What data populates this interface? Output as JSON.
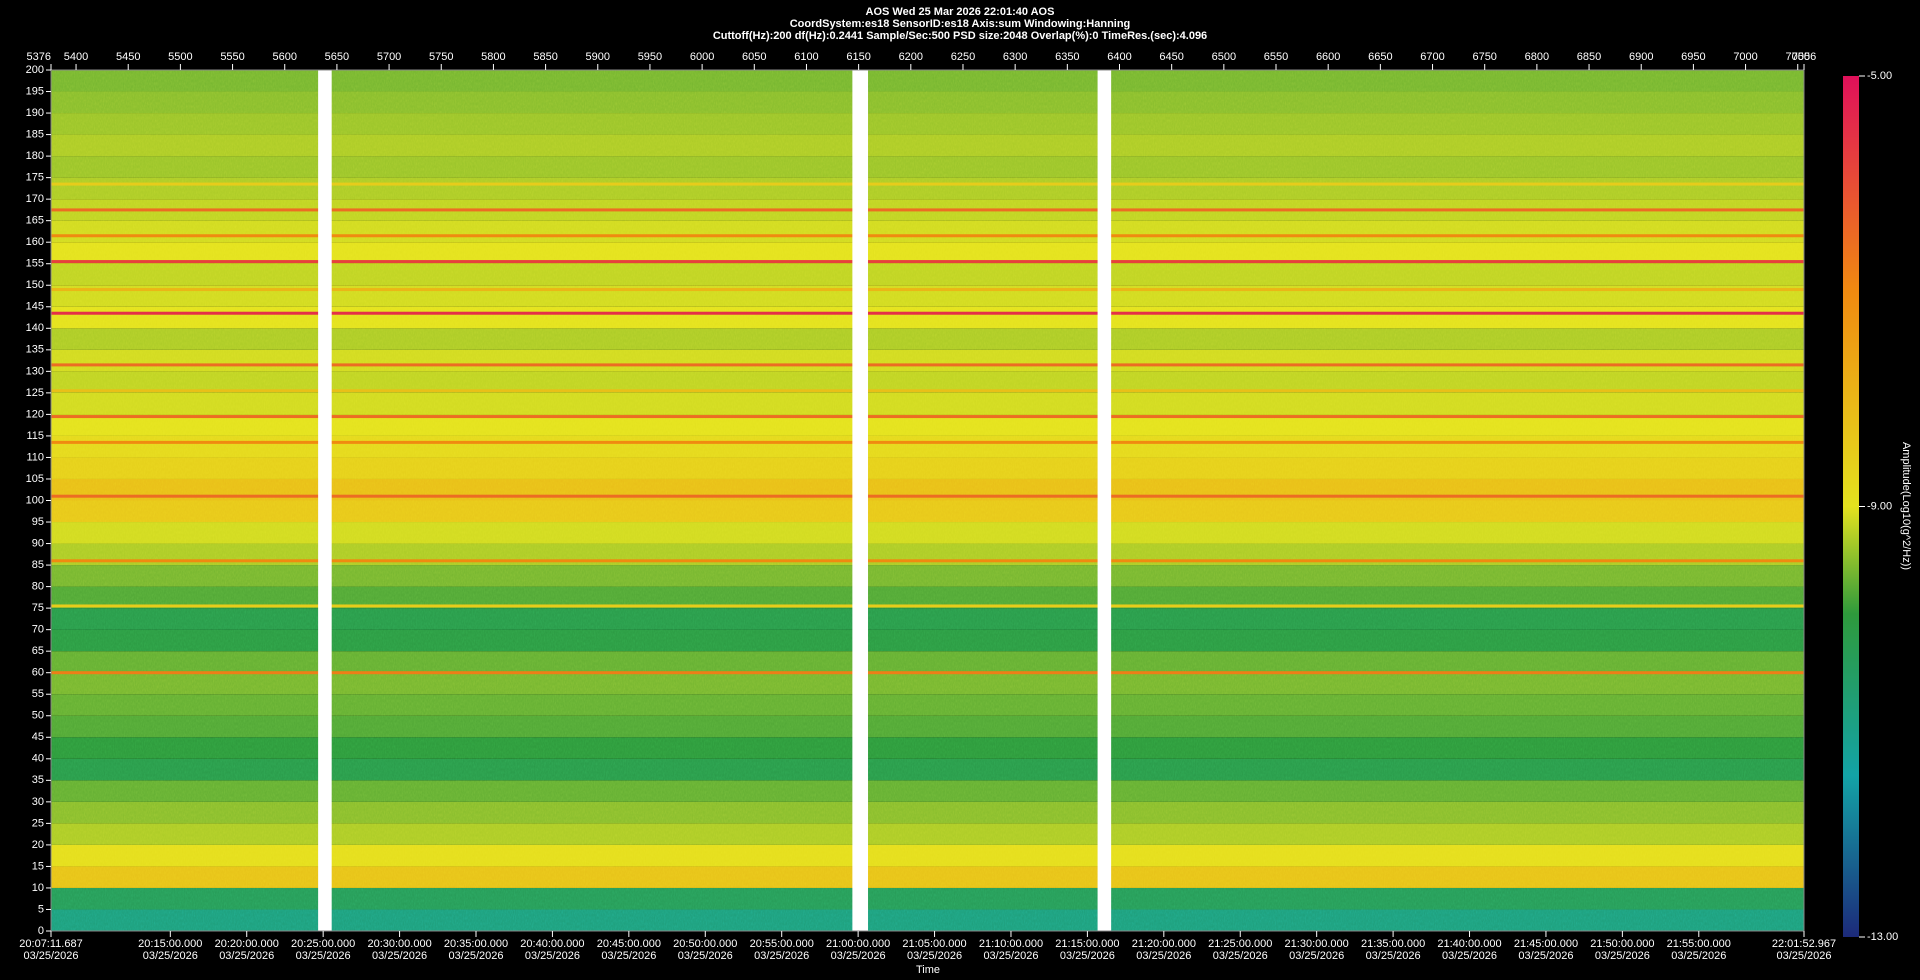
{
  "chart_data": {
    "type": "heatmap",
    "title": "AOS  Wed 25 Mar 2026 22:01:40  AOS",
    "subtitle": "CoordSystem:es18   SensorID:es18   Axis:sum   Windowing:Hanning",
    "info": "Cuttoff(Hz):200     df(Hz):0.2441     Sample/Sec:500     PSD size:2048     Overlap(%):0     TimeRes.(sec):4.096",
    "xlabel": "Time",
    "colorbar_label": "Amplitude(Log10(g^2/Hz))",
    "frame_lim": [
      5376,
      7056
    ],
    "frame_ticks": [
      5376,
      5400,
      5450,
      5500,
      5550,
      5600,
      5650,
      5700,
      5750,
      5800,
      5850,
      5900,
      5950,
      6000,
      6050,
      6100,
      6150,
      6200,
      6250,
      6300,
      6350,
      6400,
      6450,
      6500,
      6550,
      6600,
      6650,
      6700,
      6750,
      6800,
      6850,
      6900,
      6950,
      7000,
      7050,
      7056
    ],
    "xlim": [
      72431.687,
      79312.967
    ],
    "xticks": [
      {
        "value": 72431.687,
        "label": "20:07:11.687",
        "date": "03/25/2026"
      },
      {
        "value": 72900,
        "label": "20:15:00.000",
        "date": "03/25/2026"
      },
      {
        "value": 73200,
        "label": "20:20:00.000",
        "date": "03/25/2026"
      },
      {
        "value": 73500,
        "label": "20:25:00.000",
        "date": "03/25/2026"
      },
      {
        "value": 73800,
        "label": "20:30:00.000",
        "date": "03/25/2026"
      },
      {
        "value": 74100,
        "label": "20:35:00.000",
        "date": "03/25/2026"
      },
      {
        "value": 74400,
        "label": "20:40:00.000",
        "date": "03/25/2026"
      },
      {
        "value": 74700,
        "label": "20:45:00.000",
        "date": "03/25/2026"
      },
      {
        "value": 75000,
        "label": "20:50:00.000",
        "date": "03/25/2026"
      },
      {
        "value": 75300,
        "label": "20:55:00.000",
        "date": "03/25/2026"
      },
      {
        "value": 75600,
        "label": "21:00:00.000",
        "date": "03/25/2026"
      },
      {
        "value": 75900,
        "label": "21:05:00.000",
        "date": "03/25/2026"
      },
      {
        "value": 76200,
        "label": "21:10:00.000",
        "date": "03/25/2026"
      },
      {
        "value": 76500,
        "label": "21:15:00.000",
        "date": "03/25/2026"
      },
      {
        "value": 76800,
        "label": "21:20:00.000",
        "date": "03/25/2026"
      },
      {
        "value": 77100,
        "label": "21:25:00.000",
        "date": "03/25/2026"
      },
      {
        "value": 77400,
        "label": "21:30:00.000",
        "date": "03/25/2026"
      },
      {
        "value": 77700,
        "label": "21:35:00.000",
        "date": "03/25/2026"
      },
      {
        "value": 78000,
        "label": "21:40:00.000",
        "date": "03/25/2026"
      },
      {
        "value": 78300,
        "label": "21:45:00.000",
        "date": "03/25/2026"
      },
      {
        "value": 78600,
        "label": "21:50:00.000",
        "date": "03/25/2026"
      },
      {
        "value": 78900,
        "label": "21:55:00.000",
        "date": "03/25/2026"
      },
      {
        "value": 79312.967,
        "label": "22:01:52.967",
        "date": "03/25/2026"
      }
    ],
    "ylim": [
      0,
      200
    ],
    "yticks": [
      0,
      5,
      10,
      15,
      20,
      25,
      30,
      35,
      40,
      45,
      50,
      55,
      60,
      65,
      70,
      75,
      80,
      85,
      90,
      95,
      100,
      105,
      110,
      115,
      120,
      125,
      130,
      135,
      140,
      145,
      150,
      155,
      160,
      165,
      170,
      175,
      180,
      185,
      190,
      195,
      200
    ],
    "clim": [
      -13,
      -5
    ],
    "cticks": [
      {
        "value": -5,
        "label": "-5.00"
      },
      {
        "value": -9,
        "label": "-9.00"
      },
      {
        "value": -13,
        "label": "-13.00"
      }
    ],
    "colorscale": [
      [
        -13,
        "#1c2a7a"
      ],
      [
        -11.5,
        "#13a3a6"
      ],
      [
        -10,
        "#2e9a3c"
      ],
      [
        -9,
        "#e4e21e"
      ],
      [
        -7,
        "#f08a10"
      ],
      [
        -5,
        "#e0105a"
      ]
    ],
    "bands": {
      "edges": [
        0,
        5,
        10,
        15,
        20,
        25,
        30,
        35,
        40,
        45,
        50,
        55,
        60,
        65,
        70,
        75,
        80,
        85,
        90,
        95,
        100,
        105,
        110,
        115,
        120,
        125,
        130,
        135,
        140,
        145,
        150,
        155,
        160,
        165,
        170,
        175,
        180,
        185,
        190,
        195,
        200
      ],
      "values": [
        -10.9,
        -10.4,
        -8.3,
        -8.9,
        -9.3,
        -9.5,
        -9.7,
        -10.2,
        -10.0,
        -9.8,
        -9.7,
        -9.6,
        -9.7,
        -10.1,
        -10.2,
        -9.8,
        -9.6,
        -9.3,
        -9.1,
        -8.4,
        -8.2,
        -8.6,
        -8.8,
        -9.0,
        -9.1,
        -9.2,
        -9.1,
        -9.3,
        -9.0,
        -9.1,
        -9.2,
        -9.0,
        -9.1,
        -9.2,
        -9.3,
        -9.4,
        -9.3,
        -9.4,
        -9.5,
        -9.6
      ]
    },
    "peaks": {
      "freqs": [
        167.5,
        161.5,
        155.5,
        143.5,
        131.5,
        119.5,
        113.5,
        101,
        86,
        60,
        75.5,
        149,
        125.5,
        173.5
      ],
      "values": [
        -6.5,
        -7,
        -5.8,
        -5.5,
        -6.5,
        -6.5,
        -7,
        -6.5,
        -7,
        -6.8,
        -8.5,
        -8,
        -8.2,
        -8.5
      ]
    },
    "gaps": [
      [
        5632,
        5645
      ],
      [
        6144,
        6159
      ],
      [
        6379,
        6392
      ]
    ]
  }
}
